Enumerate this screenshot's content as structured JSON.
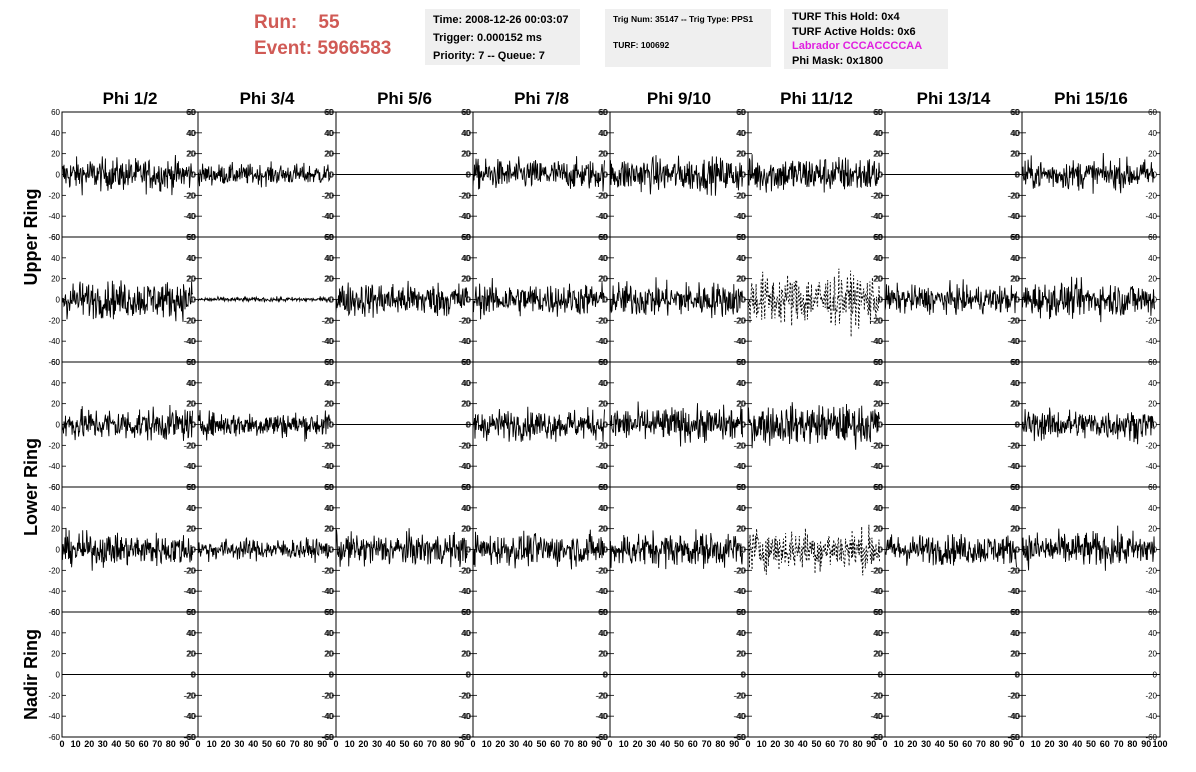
{
  "header": {
    "run_label": "Run:",
    "run_value": "55",
    "event_label": "Event:",
    "event_value": "5966583",
    "box1": [
      "Time: 2008-12-26 00:03:07",
      "Trigger: 0.000152 ms",
      "Priority: 7 -- Queue: 7"
    ],
    "box2": [
      "Trig Num: 35147 -- Trig Type: PPS1",
      "TURF: 100692"
    ],
    "box3": [
      "TURF This Hold: 0x4",
      "TURF Active Holds: 0x6",
      "Labrador CCCACCCCAA",
      "Phi Mask: 0x1800"
    ],
    "labrador_color": "#e020e0"
  },
  "chart_data": {
    "type": "line",
    "columns": [
      "Phi 1/2",
      "Phi 3/4",
      "Phi 5/6",
      "Phi 7/8",
      "Phi 9/10",
      "Phi 11/12",
      "Phi 13/14",
      "Phi 15/16"
    ],
    "row_labels": [
      "Upper Ring",
      "Lower Ring",
      "Nadir Ring"
    ],
    "row_label_spans": [
      2,
      2,
      1
    ],
    "ylim": [
      -60,
      60
    ],
    "y_ticks": [
      "60",
      "40",
      "20",
      "0",
      "-20",
      "-40",
      "-60"
    ],
    "xlim": [
      0,
      100
    ],
    "x_ticks": [
      "0",
      "10",
      "20",
      "30",
      "40",
      "50",
      "60",
      "70",
      "80",
      "90",
      "100"
    ],
    "x_tick_last_panel": [
      "0",
      "10",
      "20",
      "30",
      "40",
      "50",
      "60",
      "70",
      "80",
      "90",
      "100"
    ],
    "samples": 260,
    "trace_end_x": 96,
    "line_color": "#000000",
    "panels": [
      [
        {
          "amp": 14,
          "style": "solid"
        },
        {
          "amp": 9,
          "style": "solid"
        },
        {
          "amp": 0,
          "style": "flat"
        },
        {
          "amp": 13,
          "style": "solid"
        },
        {
          "amp": 15,
          "style": "solid"
        },
        {
          "amp": 16,
          "style": "solid"
        },
        {
          "amp": 0,
          "style": "flat"
        },
        {
          "amp": 13,
          "style": "solid"
        }
      ],
      [
        {
          "amp": 16,
          "style": "solid"
        },
        {
          "amp": 2,
          "style": "solid"
        },
        {
          "amp": 15,
          "style": "solid"
        },
        {
          "amp": 14,
          "style": "solid"
        },
        {
          "amp": 15,
          "style": "solid"
        },
        {
          "amp": 22,
          "style": "dashed"
        },
        {
          "amp": 12,
          "style": "solid"
        },
        {
          "amp": 15,
          "style": "solid"
        }
      ],
      [
        {
          "amp": 14,
          "style": "solid"
        },
        {
          "amp": 11,
          "style": "solid"
        },
        {
          "amp": 0,
          "style": "flat"
        },
        {
          "amp": 13,
          "style": "solid"
        },
        {
          "amp": 15,
          "style": "solid"
        },
        {
          "amp": 17,
          "style": "solid"
        },
        {
          "amp": 0,
          "style": "flat"
        },
        {
          "amp": 13,
          "style": "solid"
        }
      ],
      [
        {
          "amp": 14,
          "style": "solid"
        },
        {
          "amp": 9,
          "style": "solid"
        },
        {
          "amp": 14,
          "style": "solid"
        },
        {
          "amp": 14,
          "style": "solid"
        },
        {
          "amp": 15,
          "style": "solid"
        },
        {
          "amp": 18,
          "style": "dashed"
        },
        {
          "amp": 13,
          "style": "solid"
        },
        {
          "amp": 15,
          "style": "solid"
        }
      ],
      [
        {
          "amp": 0,
          "style": "flat"
        },
        {
          "amp": 0,
          "style": "flat"
        },
        {
          "amp": 0,
          "style": "flat"
        },
        {
          "amp": 0,
          "style": "flat"
        },
        {
          "amp": 0,
          "style": "flat"
        },
        {
          "amp": 0,
          "style": "flat"
        },
        {
          "amp": 0,
          "style": "flat"
        },
        {
          "amp": 0,
          "style": "flat"
        }
      ]
    ]
  }
}
